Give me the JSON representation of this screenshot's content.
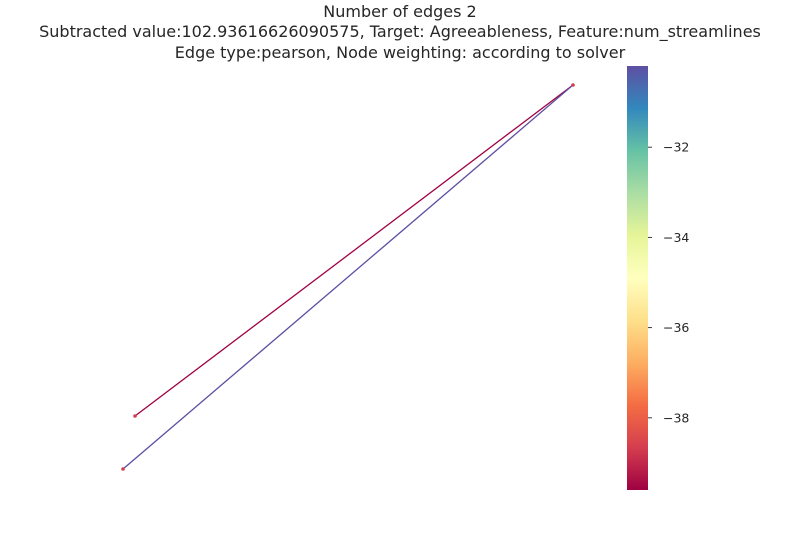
{
  "chart_data": {
    "type": "network",
    "title": [
      "Number of edges 2",
      "Subtracted value:102.93616626090575, Target: Agreeableness, Feature:num_streamlines",
      "Edge type:pearson, Node weighting: according to solver"
    ],
    "nodes": [
      {
        "id": "hub",
        "color": "#d53e4f"
      },
      {
        "id": "leaf-upper",
        "color": "#d53e4f"
      },
      {
        "id": "leaf-lower",
        "color": "#d53e4f"
      }
    ],
    "edges": [
      {
        "source": "leaf-upper",
        "target": "hub",
        "weight": -39.6
      },
      {
        "source": "leaf-lower",
        "target": "hub",
        "weight": -30.2
      }
    ],
    "colorbar": {
      "colormap": "Spectral",
      "range": [
        -39.6,
        -30.2
      ],
      "ticks": [
        {
          "value": -32,
          "label": "−32"
        },
        {
          "value": -34,
          "label": "−34"
        },
        {
          "value": -36,
          "label": "−36"
        },
        {
          "value": -38,
          "label": "−38"
        }
      ],
      "stops": [
        "#9e0142",
        "#d53e4f",
        "#f46d43",
        "#fdae61",
        "#fee08b",
        "#ffffbf",
        "#e6f598",
        "#abdda4",
        "#66c2a5",
        "#3288bd",
        "#5e4fa2"
      ]
    },
    "axes": "off"
  }
}
